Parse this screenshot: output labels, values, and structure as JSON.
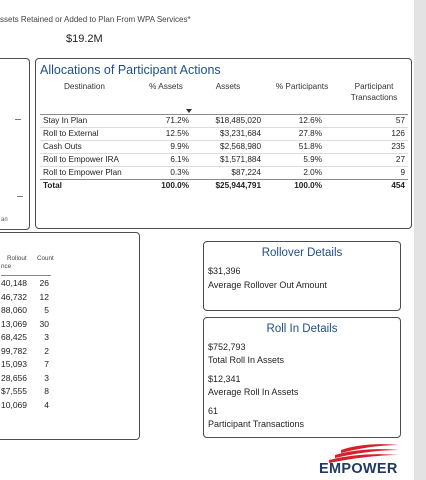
{
  "top_summary": {
    "caption": "ssets Retained or Added to Plan From WPA Services*",
    "value": "$19.2M"
  },
  "left_panel": {
    "tail_text": "an"
  },
  "allocations": {
    "title": "Allocations of Participant Actions",
    "headers": [
      "Destination",
      "% Assets",
      "Assets",
      "% Participants",
      "Participant Transactions"
    ],
    "rows": [
      {
        "destination": "Stay In Plan",
        "pct_assets": "71.2%",
        "assets": "$18,485,020",
        "pct_participants": "12.6%",
        "transactions": "57"
      },
      {
        "destination": "Roll to External",
        "pct_assets": "12.5%",
        "assets": "$3,231,684",
        "pct_participants": "27.8%",
        "transactions": "126"
      },
      {
        "destination": "Cash Outs",
        "pct_assets": "9.9%",
        "assets": "$2,568,980",
        "pct_participants": "51.8%",
        "transactions": "235"
      },
      {
        "destination": "Roll to Empower IRA",
        "pct_assets": "6.1%",
        "assets": "$1,571,884",
        "pct_participants": "5.9%",
        "transactions": "27"
      },
      {
        "destination": "Roll to Empower Plan",
        "pct_assets": "0.3%",
        "assets": "$87,224",
        "pct_participants": "2.0%",
        "transactions": "9"
      }
    ],
    "total": {
      "label": "Total",
      "pct_assets": "100.0%",
      "assets": "$25,944,791",
      "pct_participants": "100.0%",
      "transactions": "454"
    }
  },
  "rollout_table": {
    "header_line1": "Rollout",
    "header_line2": "nce",
    "count_header": "Count",
    "rows": [
      {
        "amount": "40,148",
        "count": "26"
      },
      {
        "amount": "46,732",
        "count": "12"
      },
      {
        "amount": "88,060",
        "count": "5"
      },
      {
        "amount": "13,069",
        "count": "30"
      },
      {
        "amount": "68,425",
        "count": "3"
      },
      {
        "amount": "99,782",
        "count": "2"
      },
      {
        "amount": "15,093",
        "count": "7"
      },
      {
        "amount": "28,656",
        "count": "3"
      },
      {
        "amount": "$7,555",
        "count": "8"
      },
      {
        "amount": "10,069",
        "count": "4"
      }
    ]
  },
  "rollover_details": {
    "title": "Rollover Details",
    "value": "$31,396",
    "label": "Average Rollover Out Amount"
  },
  "rollin_details": {
    "title": "Roll In Details",
    "total_value": "$752,793",
    "total_label": "Total Roll In Assets",
    "avg_value": "$12,341",
    "avg_label": "Average Roll In Assets",
    "txn_value": "61",
    "txn_label": "Participant Transactions"
  },
  "logo": {
    "text": "EMPOWER",
    "colors": {
      "wave": "#d6202b",
      "text": "#1f3a64"
    }
  }
}
